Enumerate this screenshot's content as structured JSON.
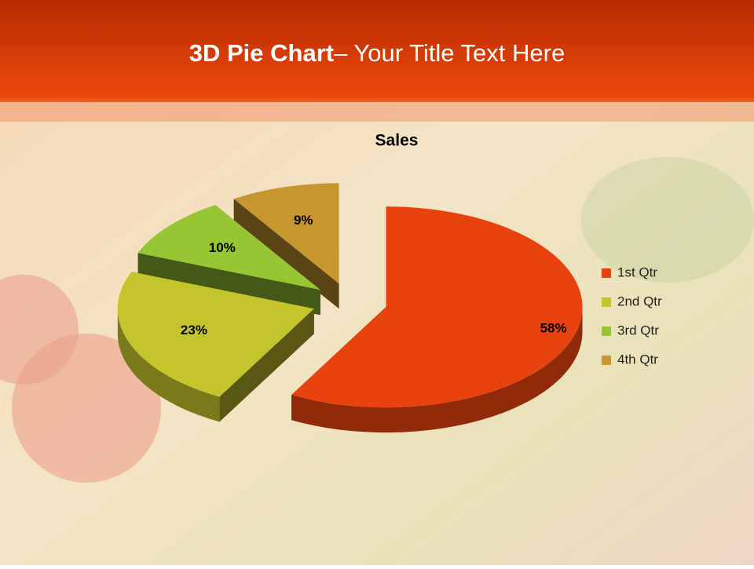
{
  "slide": {
    "title_bold": "3D Pie Chart",
    "title_rest": "– Your Title Text Here"
  },
  "chart_data": {
    "type": "pie",
    "title": "Sales",
    "categories": [
      "1st Qtr",
      "2nd Qtr",
      "3rd Qtr",
      "4th Qtr"
    ],
    "values": [
      58,
      23,
      10,
      9
    ],
    "value_labels": [
      "58%",
      "23%",
      "10%",
      "9%"
    ],
    "colors": [
      "#e8430e",
      "#c4c42c",
      "#96c634",
      "#c8962e"
    ],
    "legend": "right"
  }
}
